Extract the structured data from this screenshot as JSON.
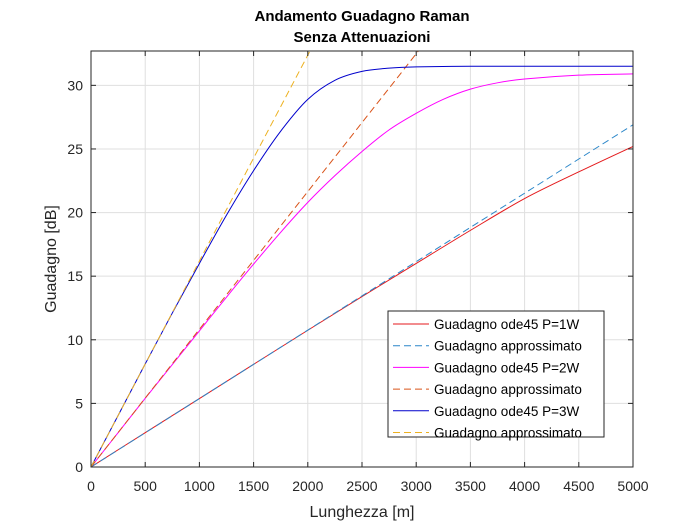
{
  "chart_data": {
    "type": "line",
    "title": [
      "Andamento Guadagno Raman",
      "Senza Attenuazioni"
    ],
    "xlabel": "Lunghezza [m]",
    "ylabel": "Guadagno [dB]",
    "xlim": [
      0,
      5000
    ],
    "ylim": [
      0,
      32.7
    ],
    "xticks": [
      0,
      500,
      1000,
      1500,
      2000,
      2500,
      3000,
      3500,
      4000,
      4500,
      5000
    ],
    "yticks": [
      0,
      5,
      10,
      15,
      20,
      25,
      30
    ],
    "grid": true,
    "legend_position": "bottom-right",
    "series": [
      {
        "name": "Guadagno ode45 P=1W",
        "color": "#e41a1c",
        "dash": "solid",
        "x": [
          0,
          500,
          1000,
          1500,
          2000,
          2500,
          3000,
          3500,
          4000,
          4500,
          5000
        ],
        "y": [
          0,
          2.7,
          5.38,
          8.07,
          10.75,
          13.4,
          16.0,
          18.6,
          21.1,
          23.2,
          25.2
        ]
      },
      {
        "name": "Guadagno approssimato",
        "color": "#2a86c9",
        "dash": "dashed",
        "x": [
          0,
          5000
        ],
        "y": [
          0,
          26.9
        ]
      },
      {
        "name": "Guadagno ode45 P=2W",
        "color": "#ff00ff",
        "dash": "solid",
        "x": [
          0,
          250,
          500,
          750,
          1000,
          1250,
          1500,
          1750,
          2000,
          2250,
          2500,
          2750,
          3000,
          3250,
          3500,
          3750,
          4000,
          4500,
          5000
        ],
        "y": [
          0,
          2.7,
          5.4,
          8.05,
          10.7,
          13.35,
          15.95,
          18.45,
          20.8,
          22.9,
          24.8,
          26.5,
          27.8,
          28.9,
          29.7,
          30.2,
          30.5,
          30.8,
          30.9
        ]
      },
      {
        "name": "Guadagno approssimato",
        "color": "#d95319",
        "dash": "dashed",
        "x": [
          0,
          3020
        ],
        "y": [
          0,
          32.7
        ]
      },
      {
        "name": "Guadagno ode45 P=3W",
        "color": "#0000cc",
        "dash": "solid",
        "x": [
          0,
          250,
          500,
          750,
          1000,
          1250,
          1500,
          1750,
          2000,
          2250,
          2500,
          2750,
          3000,
          3500,
          4000,
          4500,
          5000
        ],
        "y": [
          0,
          4.05,
          8.1,
          12.1,
          16.0,
          19.8,
          23.3,
          26.4,
          28.9,
          30.4,
          31.1,
          31.35,
          31.45,
          31.5,
          31.5,
          31.5,
          31.5
        ]
      },
      {
        "name": "Guadagno approssimato",
        "color": "#edb120",
        "dash": "dashed",
        "x": [
          0,
          2020
        ],
        "y": [
          0,
          32.7
        ]
      }
    ]
  }
}
